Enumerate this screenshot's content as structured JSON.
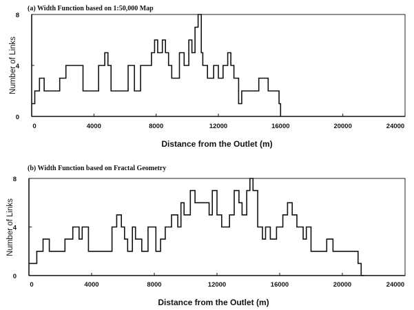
{
  "chart_data": [
    {
      "type": "line",
      "step": true,
      "title": "(a) Width Function based on 1:50,000 Map",
      "xlabel": "Distance from the Outlet (m)",
      "ylabel": "Number of Links",
      "xlim": [
        0,
        24000
      ],
      "ylim": [
        0,
        8
      ],
      "xticks": [
        "0",
        "4000",
        "8000",
        "12000",
        "16000",
        "20000",
        "24000"
      ],
      "yticks": [
        "0",
        "4",
        "8"
      ],
      "series": [
        {
          "x": [
            0,
            200,
            500,
            800,
            1200,
            1800,
            2000,
            2200,
            2600,
            3000,
            3300,
            4000,
            4300,
            4500,
            4700,
            4900,
            5100,
            5400,
            5800,
            6200,
            6600,
            7000,
            7400,
            7700,
            7900,
            8100,
            8400,
            8600,
            8800,
            9000,
            9100,
            9500,
            9800,
            10100,
            10300,
            10500,
            10700,
            10900,
            11000,
            11300,
            11700,
            12000,
            12300,
            12600,
            12800,
            13000,
            13300,
            13500,
            14300,
            14600,
            15200,
            15700,
            15900,
            16000
          ],
          "y": [
            1,
            2,
            3,
            2,
            2,
            3,
            3,
            4,
            4,
            4,
            2,
            2,
            4,
            4,
            5,
            4,
            2,
            2,
            2,
            4,
            2,
            4,
            4,
            5,
            6,
            5,
            6,
            5,
            4,
            3,
            3,
            5,
            4,
            6,
            5,
            7,
            8,
            5,
            4,
            3,
            4,
            3,
            4,
            5,
            4,
            3,
            1,
            2,
            2,
            3,
            2,
            2,
            1,
            0
          ]
        }
      ]
    },
    {
      "type": "line",
      "step": true,
      "title": "(b) Width Function based on Fractal Geometry",
      "xlabel": "Distance from the Outlet (m)",
      "ylabel": "Number of Links",
      "xlim": [
        0,
        24000
      ],
      "ylim": [
        0,
        8
      ],
      "xticks": [
        "0",
        "4000",
        "8000",
        "12000",
        "16000",
        "20000",
        "24000"
      ],
      "yticks": [
        "0",
        "4",
        "8"
      ],
      "series": [
        {
          "x": [
            0,
            500,
            900,
            1300,
            2300,
            2800,
            3000,
            3200,
            3400,
            3800,
            4300,
            5300,
            5600,
            5900,
            6100,
            6300,
            6600,
            6800,
            7200,
            7600,
            8100,
            8400,
            8700,
            9100,
            9500,
            9700,
            9900,
            10300,
            10600,
            10800,
            11500,
            11700,
            12000,
            12300,
            12800,
            13100,
            13400,
            13600,
            13900,
            14100,
            14300,
            14600,
            14900,
            15100,
            15400,
            15800,
            16200,
            16500,
            16800,
            17100,
            17500,
            17700,
            18000,
            19000,
            19400,
            19700,
            20200,
            20600,
            21000,
            21200,
            21400
          ],
          "y": [
            1,
            2,
            3,
            2,
            3,
            4,
            4,
            3,
            4,
            2,
            2,
            4,
            5,
            4,
            3,
            2,
            4,
            3,
            2,
            4,
            2,
            3,
            4,
            5,
            4,
            6,
            5,
            7,
            6,
            6,
            5,
            7,
            5,
            4,
            5,
            7,
            6,
            5,
            7,
            8,
            7,
            4,
            3,
            4,
            3,
            4,
            5,
            6,
            5,
            4,
            3,
            4,
            2,
            3,
            2,
            2,
            2,
            2,
            1,
            0,
            0
          ]
        }
      ]
    }
  ]
}
